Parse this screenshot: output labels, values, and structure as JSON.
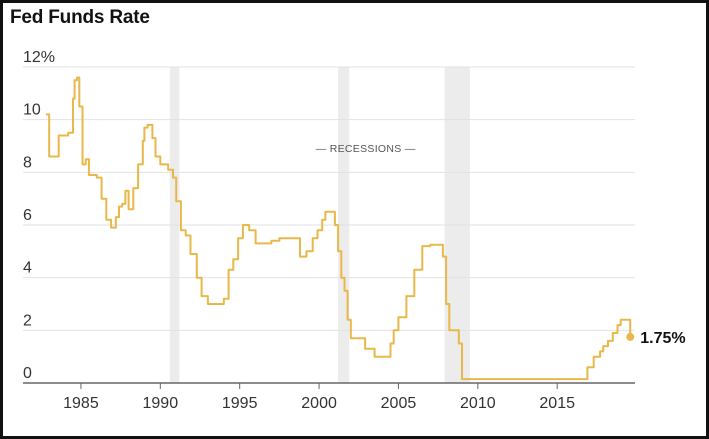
{
  "chart_data": {
    "type": "line",
    "title": "Fed Funds Rate",
    "xlabel": "",
    "ylabel": "",
    "xlim": [
      1982.8,
      2019.9
    ],
    "ylim": [
      0,
      12
    ],
    "y_ticks": [
      0,
      2,
      4,
      6,
      8,
      10,
      12
    ],
    "y_tick_labels": [
      "0",
      "2",
      "4",
      "6",
      "8",
      "10",
      "12%"
    ],
    "x_ticks": [
      1985,
      1990,
      1995,
      2000,
      2005,
      2010,
      2015
    ],
    "x_tick_labels": [
      "1985",
      "1990",
      "1995",
      "2000",
      "2005",
      "2010",
      "2015"
    ],
    "grid": "horizontal",
    "line_color": "#e8b84a",
    "recession_color": "#ececec",
    "recessions_label": "— RECESSIONS —",
    "recessions": [
      [
        1990.6,
        1991.2
      ],
      [
        2001.2,
        2001.9
      ],
      [
        2007.9,
        2009.5
      ]
    ],
    "end_label": "1.75%",
    "end_point": [
      2019.6,
      1.75
    ],
    "series": [
      {
        "x": [
          1982.8,
          1983.0,
          1983.2,
          1983.6,
          1983.9,
          1984.2,
          1984.5,
          1984.6,
          1984.75,
          1984.9,
          1985.1,
          1985.3,
          1985.5,
          1985.7,
          1986.0,
          1986.3,
          1986.6,
          1986.9,
          1987.2,
          1987.4,
          1987.6,
          1987.8,
          1988.0,
          1988.3,
          1988.6,
          1988.9,
          1989.0,
          1989.2,
          1989.5,
          1989.7,
          1990.0,
          1990.5,
          1990.8,
          1991.0,
          1991.3,
          1991.6,
          1991.9,
          1992.3,
          1992.6,
          1993.0,
          1993.5,
          1994.0,
          1994.3,
          1994.6,
          1994.9,
          1995.2,
          1995.6,
          1996.0,
          1996.5,
          1997.0,
          1997.5,
          1998.0,
          1998.8,
          1999.2,
          1999.6,
          1999.9,
          2000.2,
          2000.4,
          2000.8,
          2001.0,
          2001.2,
          2001.4,
          2001.6,
          2001.8,
          2002.0,
          2002.5,
          2002.9,
          2003.5,
          2004.0,
          2004.5,
          2004.7,
          2005.0,
          2005.5,
          2006.0,
          2006.5,
          2007.0,
          2007.5,
          2007.8,
          2008.0,
          2008.2,
          2008.5,
          2008.8,
          2009.0,
          2010.0,
          2012.0,
          2014.0,
          2015.9,
          2016.9,
          2017.3,
          2017.7,
          2017.9,
          2018.2,
          2018.5,
          2018.8,
          2019.0,
          2019.4,
          2019.6
        ],
        "y": [
          10.2,
          8.6,
          8.6,
          9.4,
          9.4,
          9.5,
          10.8,
          11.5,
          11.6,
          10.5,
          8.3,
          8.5,
          7.9,
          7.9,
          7.8,
          7.0,
          6.2,
          5.9,
          6.3,
          6.7,
          6.8,
          7.3,
          6.6,
          7.4,
          8.3,
          9.2,
          9.7,
          9.8,
          9.3,
          8.6,
          8.3,
          8.1,
          7.8,
          6.9,
          5.8,
          5.6,
          4.9,
          4.0,
          3.3,
          3.0,
          3.0,
          3.2,
          4.3,
          4.7,
          5.5,
          6.0,
          5.8,
          5.3,
          5.3,
          5.4,
          5.5,
          5.5,
          4.8,
          5.0,
          5.5,
          5.8,
          6.2,
          6.5,
          6.5,
          6.0,
          5.0,
          4.0,
          3.5,
          2.4,
          1.7,
          1.7,
          1.3,
          1.0,
          1.0,
          1.5,
          2.0,
          2.5,
          3.3,
          4.3,
          5.2,
          5.25,
          5.25,
          4.8,
          3.0,
          2.0,
          2.0,
          1.5,
          0.15,
          0.15,
          0.15,
          0.15,
          0.15,
          0.6,
          1.0,
          1.2,
          1.4,
          1.6,
          1.9,
          2.2,
          2.4,
          2.4,
          1.75
        ]
      }
    ]
  }
}
